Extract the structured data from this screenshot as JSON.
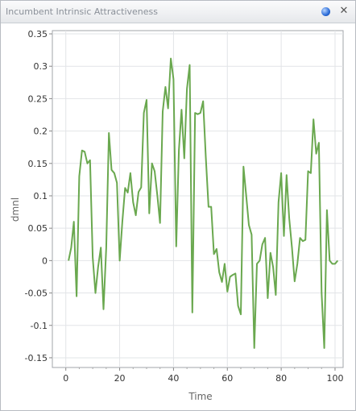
{
  "window": {
    "title": "Incumbent Intrinsic Attractiveness",
    "help_icon": "help-icon",
    "close_icon": "close-icon",
    "close_glyph": "✕"
  },
  "chart_data": {
    "type": "line",
    "xlabel": "Time",
    "ylabel": "dmnl",
    "xlim": [
      -5,
      103
    ],
    "ylim": [
      -0.165,
      0.355
    ],
    "grid": true,
    "xticks": [
      0,
      20,
      40,
      60,
      80,
      100
    ],
    "yticks": [
      -0.15,
      -0.1,
      -0.05,
      0,
      0.05,
      0.1,
      0.15,
      0.2,
      0.25,
      0.3,
      0.35
    ],
    "ytick_labels": [
      "-0.15",
      "-0.1",
      "-0.05",
      "0",
      "0.05",
      "0.1",
      "0.15",
      "0.2",
      "0.25",
      "0.3",
      "0.35"
    ],
    "series": [
      {
        "color": "#6aa84f",
        "x": [
          1,
          2,
          3,
          4,
          5,
          6,
          7,
          8,
          9,
          10,
          11,
          12,
          13,
          14,
          15,
          16,
          17,
          18,
          19,
          20,
          21,
          22,
          23,
          24,
          25,
          26,
          27,
          28,
          29,
          30,
          31,
          32,
          33,
          34,
          35,
          36,
          37,
          38,
          39,
          40,
          41,
          42,
          43,
          44,
          45,
          46,
          47,
          48,
          49,
          50,
          51,
          52,
          53,
          54,
          55,
          56,
          57,
          58,
          59,
          60,
          61,
          62,
          63,
          64,
          65,
          66,
          67,
          68,
          69,
          70,
          71,
          72,
          73,
          74,
          75,
          76,
          77,
          78,
          79,
          80,
          81,
          82,
          83,
          84,
          85,
          86,
          87,
          88,
          89,
          90,
          91,
          92,
          93,
          94,
          95,
          96,
          97,
          98,
          99,
          100,
          101
        ],
        "y": [
          0.0,
          0.02,
          0.06,
          -0.055,
          0.13,
          0.17,
          0.168,
          0.15,
          0.155,
          0.005,
          -0.05,
          -0.01,
          0.02,
          -0.075,
          0.02,
          0.197,
          0.14,
          0.135,
          0.12,
          0.0,
          0.06,
          0.112,
          0.105,
          0.135,
          0.09,
          0.07,
          0.106,
          0.113,
          0.228,
          0.248,
          0.073,
          0.15,
          0.138,
          0.1,
          0.058,
          0.23,
          0.268,
          0.235,
          0.312,
          0.28,
          0.022,
          0.17,
          0.233,
          0.158,
          0.265,
          0.302,
          -0.08,
          0.228,
          0.226,
          0.228,
          0.246,
          0.16,
          0.083,
          0.083,
          0.01,
          0.018,
          -0.018,
          -0.033,
          -0.005,
          -0.048,
          -0.025,
          -0.022,
          -0.02,
          -0.07,
          -0.083,
          0.145,
          0.1,
          0.055,
          0.04,
          -0.135,
          -0.005,
          0.0,
          0.025,
          0.035,
          -0.058,
          0.012,
          -0.01,
          -0.053,
          0.09,
          0.135,
          0.038,
          0.132,
          0.065,
          0.02,
          -0.032,
          -0.005,
          0.035,
          0.03,
          0.032,
          0.138,
          0.135,
          0.218,
          0.165,
          0.182,
          -0.05,
          -0.135,
          0.078,
          0.0,
          -0.005,
          -0.005,
          0.0
        ]
      }
    ]
  }
}
